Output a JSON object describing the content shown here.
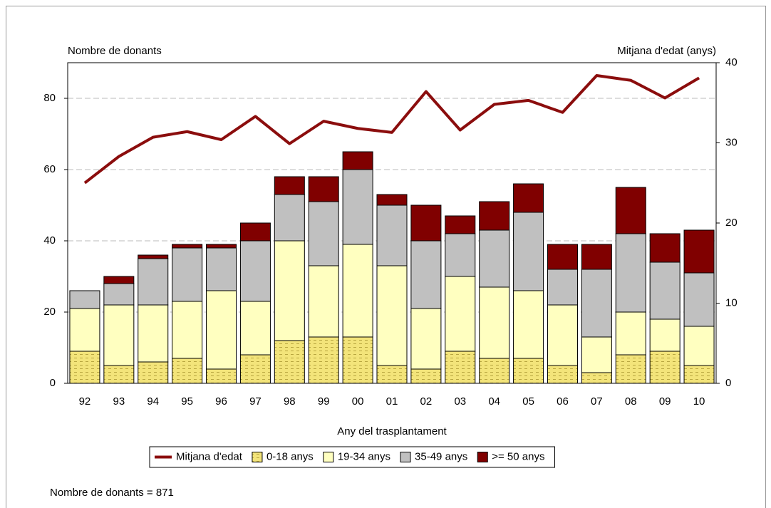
{
  "chart_data": {
    "type": "stacked_bar_line",
    "y_label": "Nombre de donants",
    "y2_label": "Mitjana d'edat (anys)",
    "x_label": "Any del trasplantament",
    "note": "Nombre de donants = 871",
    "categories": [
      "92",
      "93",
      "94",
      "95",
      "96",
      "97",
      "98",
      "99",
      "00",
      "01",
      "02",
      "03",
      "04",
      "05",
      "06",
      "07",
      "08",
      "09",
      "10"
    ],
    "ylim": [
      0,
      90
    ],
    "yticks": [
      0,
      20,
      40,
      60,
      80
    ],
    "y2lim": [
      0,
      40
    ],
    "y2ticks": [
      0,
      10,
      20,
      30,
      40
    ],
    "grid": true,
    "series": [
      {
        "name": "Mitjana d'edat",
        "type": "line",
        "axis": "y2",
        "color": "#8b0d0d",
        "values": [
          25.0,
          28.3,
          30.7,
          31.4,
          30.4,
          33.3,
          29.9,
          32.7,
          31.8,
          31.3,
          36.4,
          31.6,
          34.8,
          35.3,
          33.8,
          38.4,
          37.8,
          35.6,
          38.1
        ]
      },
      {
        "name": "0-18 anys",
        "type": "bar",
        "color": "#f3e47a",
        "hatch": "dashes",
        "values": [
          9,
          5,
          6,
          7,
          4,
          8,
          12,
          13,
          13,
          5,
          4,
          9,
          7,
          7,
          5,
          3,
          8,
          9,
          5
        ]
      },
      {
        "name": "19-34 anys",
        "type": "bar",
        "color": "#ffffc0",
        "values": [
          12,
          17,
          16,
          16,
          22,
          15,
          28,
          20,
          26,
          28,
          17,
          21,
          20,
          19,
          17,
          10,
          12,
          9,
          11
        ]
      },
      {
        "name": "35-49 anys",
        "type": "bar",
        "color": "#c0c0c0",
        "values": [
          5,
          6,
          13,
          15,
          12,
          17,
          13,
          18,
          21,
          17,
          19,
          12,
          16,
          22,
          10,
          19,
          22,
          16,
          15
        ]
      },
      {
        "name": ">= 50 anys",
        "type": "bar",
        "color": "#800000",
        "values": [
          0,
          2,
          1,
          1,
          1,
          5,
          5,
          7,
          5,
          3,
          10,
          5,
          8,
          8,
          7,
          7,
          13,
          8,
          12
        ]
      }
    ]
  }
}
